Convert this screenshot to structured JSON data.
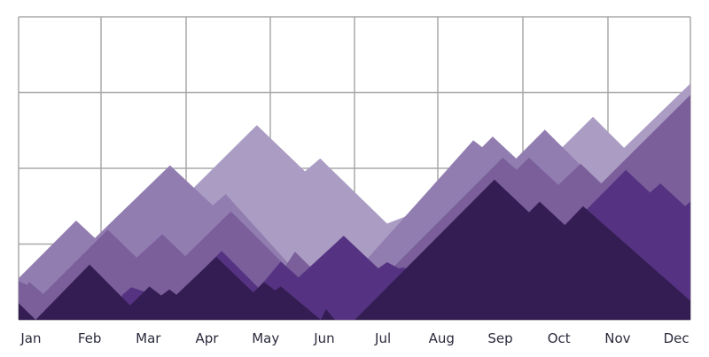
{
  "chart_data": {
    "type": "area",
    "title": "",
    "xlabel": "",
    "ylabel": "",
    "categories": [
      "Jan",
      "Feb",
      "Mar",
      "Apr",
      "May",
      "Jun",
      "Jul",
      "Aug",
      "Sep",
      "Oct",
      "Nov",
      "Dec"
    ],
    "xlim": [
      -0.21,
      11.24
    ],
    "ylim": [
      0,
      4
    ],
    "grid": true,
    "y_tick_labels_shown": false,
    "legend": "none",
    "series": [
      {
        "color": "#ab9cc3",
        "points": [
          [
            -0.21,
            0.25
          ],
          [
            1.74,
            0.83
          ],
          [
            2.77,
            1.74
          ],
          [
            3.85,
            2.57
          ],
          [
            4.67,
            1.96
          ],
          [
            4.93,
            2.13
          ],
          [
            6.07,
            1.27
          ],
          [
            6.57,
            1.42
          ],
          [
            8.54,
            1.88
          ],
          [
            9.58,
            2.68
          ],
          [
            10.11,
            2.27
          ],
          [
            11.24,
            3.12
          ]
        ]
      },
      {
        "color": "#917db0",
        "points": [
          [
            -0.21,
            0.55
          ],
          [
            0.77,
            1.31
          ],
          [
            1.09,
            1.08
          ],
          [
            2.37,
            2.04
          ],
          [
            3.1,
            1.51
          ],
          [
            3.32,
            1.66
          ],
          [
            4.38,
            0.75
          ],
          [
            5.09,
            0.25
          ],
          [
            7.54,
            2.37
          ],
          [
            7.69,
            2.28
          ],
          [
            7.87,
            2.42
          ],
          [
            8.27,
            2.13
          ],
          [
            8.76,
            2.51
          ],
          [
            9.72,
            1.77
          ],
          [
            11.24,
            1.3
          ]
        ]
      },
      {
        "color": "#7a5f9b",
        "points": [
          [
            -0.21,
            0.51
          ],
          [
            -0.06,
            0.46
          ],
          [
            -0.03,
            0.5
          ],
          [
            0.21,
            0.34
          ],
          [
            1.31,
            1.19
          ],
          [
            1.8,
            0.82
          ],
          [
            2.24,
            1.13
          ],
          [
            2.63,
            0.84
          ],
          [
            3.41,
            1.43
          ],
          [
            4.34,
            0.71
          ],
          [
            4.5,
            0.9
          ],
          [
            4.76,
            0.7
          ],
          [
            5.21,
            0.13
          ],
          [
            6.17,
            0.69
          ],
          [
            8.04,
            2.14
          ],
          [
            8.28,
            1.98
          ],
          [
            8.49,
            2.14
          ],
          [
            8.99,
            1.78
          ],
          [
            9.37,
            2.06
          ],
          [
            9.72,
            1.8
          ],
          [
            11.24,
            2.97
          ]
        ]
      },
      {
        "color": "#553382",
        "points": [
          [
            -0.21,
            0
          ],
          [
            1.36,
            0
          ],
          [
            1.56,
            0.33
          ],
          [
            1.71,
            0.43
          ],
          [
            2.4,
            0.25
          ],
          [
            3.25,
            0.91
          ],
          [
            3.88,
            0.42
          ],
          [
            4.26,
            0.77
          ],
          [
            4.56,
            0.56
          ],
          [
            5.33,
            1.11
          ],
          [
            5.92,
            0.68
          ],
          [
            6.07,
            0.76
          ],
          [
            6.27,
            0.68
          ],
          [
            6.35,
            0.69
          ],
          [
            7.93,
            0.25
          ],
          [
            10.14,
            1.98
          ],
          [
            10.55,
            1.68
          ],
          [
            10.73,
            1.8
          ],
          [
            11.15,
            1.5
          ],
          [
            11.24,
            1.56
          ]
        ]
      },
      {
        "color": "#341d52",
        "points": [
          [
            -0.21,
            0.22
          ],
          [
            0.08,
            0
          ],
          [
            1.0,
            0.73
          ],
          [
            1.69,
            0.19
          ],
          [
            2.02,
            0.44
          ],
          [
            2.22,
            0.32
          ],
          [
            2.36,
            0.4
          ],
          [
            2.48,
            0.33
          ],
          [
            3.16,
            0.83
          ],
          [
            3.79,
            0.36
          ],
          [
            3.97,
            0.5
          ],
          [
            4.16,
            0.39
          ],
          [
            4.26,
            0.44
          ],
          [
            4.94,
            0
          ],
          [
            5.03,
            0.14
          ],
          [
            5.18,
            0
          ],
          [
            5.52,
            0
          ],
          [
            7.9,
            1.85
          ],
          [
            8.49,
            1.42
          ],
          [
            8.67,
            1.56
          ],
          [
            9.1,
            1.25
          ],
          [
            9.41,
            1.5
          ],
          [
            11.24,
            0.25
          ]
        ]
      }
    ]
  }
}
